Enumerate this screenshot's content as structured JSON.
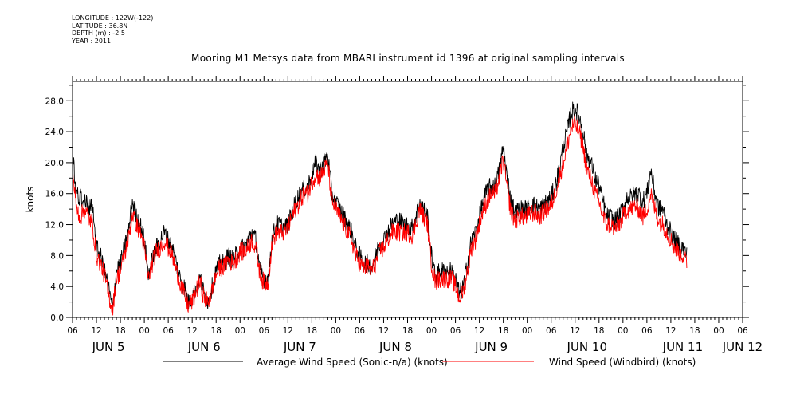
{
  "header": {
    "longitude": "LONGITUDE : 122W(-122)",
    "latitude": "LATITUDE : 36.8N",
    "depth": "DEPTH (m) : -2.5",
    "year": "YEAR : 2011"
  },
  "chart_data": {
    "type": "line",
    "title": "Mooring M1 Metsys data from MBARI instrument id 1396 at original sampling intervals",
    "ylabel": "knots",
    "xlabel": "",
    "ylim": [
      0,
      30.5
    ],
    "xlim_hours": [
      0,
      168
    ],
    "yticks": [
      "0.0",
      "4.0",
      "8.0",
      "12.0",
      "16.0",
      "20.0",
      "24.0",
      "28.0"
    ],
    "ytick_values": [
      0,
      4,
      8,
      12,
      16,
      20,
      24,
      28
    ],
    "hour_labels": [
      "06",
      "12",
      "18",
      "00",
      "06",
      "12",
      "18",
      "00",
      "06",
      "12",
      "18",
      "00",
      "06",
      "12",
      "18",
      "00",
      "06",
      "12",
      "18",
      "00",
      "06",
      "12",
      "18",
      "00",
      "06",
      "12",
      "18",
      "00",
      "06"
    ],
    "date_labels": [
      {
        "text": "JUN  5",
        "hour": 9
      },
      {
        "text": "JUN  6",
        "hour": 33
      },
      {
        "text": "JUN  7",
        "hour": 57
      },
      {
        "text": "JUN  8",
        "hour": 81
      },
      {
        "text": "JUN  9",
        "hour": 105
      },
      {
        "text": "JUN 10",
        "hour": 129
      },
      {
        "text": "JUN 11",
        "hour": 153
      },
      {
        "text": "JUN 12",
        "hour": 168
      }
    ],
    "grid": false,
    "legend": "bottom",
    "series": [
      {
        "name": "Average Wind Speed (Sonic-n/a) (knots)",
        "color": "#000000",
        "keypoints": [
          [
            0,
            21
          ],
          [
            1,
            16
          ],
          [
            2,
            15.5
          ],
          [
            3,
            15
          ],
          [
            4,
            14.5
          ],
          [
            5,
            14
          ],
          [
            6,
            9
          ],
          [
            7,
            8
          ],
          [
            8,
            6
          ],
          [
            9,
            4
          ],
          [
            10,
            1
          ],
          [
            11,
            6
          ],
          [
            12,
            7
          ],
          [
            13,
            9
          ],
          [
            14,
            11
          ],
          [
            15,
            15
          ],
          [
            16,
            13
          ],
          [
            17,
            12
          ],
          [
            18,
            10
          ],
          [
            19,
            5.5
          ],
          [
            20,
            7.5
          ],
          [
            21,
            9
          ],
          [
            22,
            10
          ],
          [
            23,
            11
          ],
          [
            24,
            10
          ],
          [
            25,
            9
          ],
          [
            26,
            7
          ],
          [
            27,
            5
          ],
          [
            28,
            4
          ],
          [
            29,
            2
          ],
          [
            30,
            2.5
          ],
          [
            31,
            4
          ],
          [
            32,
            5
          ],
          [
            33,
            3
          ],
          [
            34,
            2
          ],
          [
            35,
            4
          ],
          [
            36,
            6
          ],
          [
            37,
            7
          ],
          [
            38,
            7
          ],
          [
            39,
            8
          ],
          [
            40,
            7.5
          ],
          [
            41,
            8
          ],
          [
            42,
            9
          ],
          [
            43,
            9
          ],
          [
            44,
            10
          ],
          [
            45,
            11
          ],
          [
            46,
            10
          ],
          [
            47,
            6
          ],
          [
            48,
            5
          ],
          [
            49,
            5
          ],
          [
            50,
            10
          ],
          [
            51,
            12
          ],
          [
            52,
            12
          ],
          [
            53,
            11.5
          ],
          [
            54,
            12
          ],
          [
            55,
            13.5
          ],
          [
            56,
            15
          ],
          [
            57,
            16
          ],
          [
            58,
            16.5
          ],
          [
            59,
            17
          ],
          [
            60,
            18.5
          ],
          [
            61,
            20
          ],
          [
            62,
            19
          ],
          [
            63,
            20
          ],
          [
            64,
            21
          ],
          [
            65,
            16
          ],
          [
            66,
            15
          ],
          [
            67,
            14
          ],
          [
            68,
            13
          ],
          [
            69,
            12
          ],
          [
            70,
            11
          ],
          [
            71,
            9
          ],
          [
            72,
            8
          ],
          [
            73,
            7
          ],
          [
            74,
            7
          ],
          [
            75,
            6.5
          ],
          [
            76,
            8
          ],
          [
            77,
            9.5
          ],
          [
            78,
            10
          ],
          [
            79,
            11
          ],
          [
            80,
            12
          ],
          [
            81,
            12.5
          ],
          [
            82,
            12.5
          ],
          [
            83,
            12
          ],
          [
            84,
            12
          ],
          [
            85,
            11.5
          ],
          [
            86,
            13
          ],
          [
            87,
            15
          ],
          [
            88,
            14
          ],
          [
            89,
            13
          ],
          [
            90,
            8
          ],
          [
            91,
            5
          ],
          [
            92,
            6
          ],
          [
            93,
            6
          ],
          [
            94,
            6
          ],
          [
            95,
            6
          ],
          [
            96,
            5
          ],
          [
            97,
            3
          ],
          [
            98,
            4
          ],
          [
            99,
            7
          ],
          [
            100,
            10
          ],
          [
            101,
            11
          ],
          [
            102,
            13
          ],
          [
            103,
            15
          ],
          [
            104,
            16.5
          ],
          [
            105,
            17
          ],
          [
            106,
            17
          ],
          [
            107,
            19
          ],
          [
            108,
            22
          ],
          [
            109,
            18
          ],
          [
            110,
            15
          ],
          [
            111,
            13.5
          ],
          [
            112,
            14
          ],
          [
            113,
            14
          ],
          [
            114,
            14
          ],
          [
            115,
            14.5
          ],
          [
            116,
            14.5
          ],
          [
            117,
            14
          ],
          [
            118,
            14.5
          ],
          [
            119,
            15
          ],
          [
            120,
            15.5
          ],
          [
            121,
            17
          ],
          [
            122,
            19
          ],
          [
            123,
            22
          ],
          [
            124,
            24
          ],
          [
            125,
            26.5
          ],
          [
            126,
            27
          ],
          [
            127,
            26
          ],
          [
            128,
            24
          ],
          [
            129,
            21
          ],
          [
            130,
            20
          ],
          [
            131,
            18
          ],
          [
            132,
            17
          ],
          [
            133,
            15
          ],
          [
            134,
            13
          ],
          [
            135,
            13
          ],
          [
            136,
            12.5
          ],
          [
            137,
            13
          ],
          [
            138,
            14
          ],
          [
            139,
            15.5
          ],
          [
            140,
            15.5
          ],
          [
            141,
            16
          ],
          [
            142,
            16
          ],
          [
            143,
            15
          ],
          [
            144,
            16
          ],
          [
            145,
            19
          ],
          [
            146,
            16
          ],
          [
            147,
            14
          ],
          [
            148,
            14
          ],
          [
            149,
            12
          ],
          [
            150,
            11
          ],
          [
            151,
            10
          ],
          [
            152,
            9.5
          ],
          [
            153,
            9
          ],
          [
            154,
            8
          ]
        ]
      },
      {
        "name": "Wind Speed (Windbird) (knots)",
        "color": "#ff0000",
        "keypoints": [
          [
            0,
            19
          ],
          [
            1,
            14
          ],
          [
            2,
            13
          ],
          [
            3,
            14
          ],
          [
            4,
            13
          ],
          [
            5,
            12
          ],
          [
            6,
            8
          ],
          [
            7,
            7
          ],
          [
            8,
            5.5
          ],
          [
            9,
            3
          ],
          [
            10,
            1
          ],
          [
            11,
            5
          ],
          [
            12,
            6
          ],
          [
            13,
            8
          ],
          [
            14,
            10
          ],
          [
            15,
            13.5
          ],
          [
            16,
            12
          ],
          [
            17,
            11
          ],
          [
            18,
            9
          ],
          [
            19,
            5
          ],
          [
            20,
            7
          ],
          [
            21,
            8.5
          ],
          [
            22,
            9
          ],
          [
            23,
            10
          ],
          [
            24,
            9
          ],
          [
            25,
            8
          ],
          [
            26,
            6
          ],
          [
            27,
            4.5
          ],
          [
            28,
            3
          ],
          [
            29,
            1.5
          ],
          [
            30,
            2
          ],
          [
            31,
            3.5
          ],
          [
            32,
            4.5
          ],
          [
            33,
            2.5
          ],
          [
            34,
            2
          ],
          [
            35,
            3.5
          ],
          [
            36,
            5.5
          ],
          [
            37,
            6.5
          ],
          [
            38,
            6.5
          ],
          [
            39,
            7.5
          ],
          [
            40,
            7
          ],
          [
            41,
            7.5
          ],
          [
            42,
            8.5
          ],
          [
            43,
            8.5
          ],
          [
            44,
            9
          ],
          [
            45,
            10
          ],
          [
            46,
            9
          ],
          [
            47,
            5.5
          ],
          [
            48,
            4.5
          ],
          [
            49,
            4.5
          ],
          [
            50,
            9.5
          ],
          [
            51,
            11
          ],
          [
            52,
            11
          ],
          [
            53,
            11
          ],
          [
            54,
            11.5
          ],
          [
            55,
            13
          ],
          [
            56,
            14
          ],
          [
            57,
            15
          ],
          [
            58,
            16
          ],
          [
            59,
            16
          ],
          [
            60,
            17.5
          ],
          [
            61,
            18.5
          ],
          [
            62,
            18
          ],
          [
            63,
            19
          ],
          [
            64,
            20
          ],
          [
            65,
            15
          ],
          [
            66,
            14
          ],
          [
            67,
            13
          ],
          [
            68,
            12
          ],
          [
            69,
            11
          ],
          [
            70,
            10
          ],
          [
            71,
            8
          ],
          [
            72,
            7
          ],
          [
            73,
            6.5
          ],
          [
            74,
            6.5
          ],
          [
            75,
            6
          ],
          [
            76,
            7
          ],
          [
            77,
            8.5
          ],
          [
            78,
            9
          ],
          [
            79,
            10
          ],
          [
            80,
            11
          ],
          [
            81,
            11
          ],
          [
            82,
            11
          ],
          [
            83,
            11
          ],
          [
            84,
            11
          ],
          [
            85,
            10.5
          ],
          [
            86,
            12
          ],
          [
            87,
            14
          ],
          [
            88,
            13
          ],
          [
            89,
            12
          ],
          [
            90,
            7
          ],
          [
            91,
            4.5
          ],
          [
            92,
            5
          ],
          [
            93,
            5
          ],
          [
            94,
            5
          ],
          [
            95,
            5
          ],
          [
            96,
            4
          ],
          [
            97,
            2.5
          ],
          [
            98,
            3.5
          ],
          [
            99,
            6
          ],
          [
            100,
            9
          ],
          [
            101,
            10
          ],
          [
            102,
            12
          ],
          [
            103,
            14
          ],
          [
            104,
            15
          ],
          [
            105,
            16
          ],
          [
            106,
            16
          ],
          [
            107,
            18
          ],
          [
            108,
            20.5
          ],
          [
            109,
            16.5
          ],
          [
            110,
            13.5
          ],
          [
            111,
            12.5
          ],
          [
            112,
            13
          ],
          [
            113,
            13
          ],
          [
            114,
            13
          ],
          [
            115,
            13.5
          ],
          [
            116,
            13.5
          ],
          [
            117,
            13
          ],
          [
            118,
            13.5
          ],
          [
            119,
            14
          ],
          [
            120,
            14.5
          ],
          [
            121,
            16
          ],
          [
            122,
            18
          ],
          [
            123,
            20
          ],
          [
            124,
            22
          ],
          [
            125,
            24.5
          ],
          [
            126,
            25
          ],
          [
            127,
            24
          ],
          [
            128,
            22
          ],
          [
            129,
            19
          ],
          [
            130,
            18
          ],
          [
            131,
            16
          ],
          [
            132,
            15
          ],
          [
            133,
            13
          ],
          [
            134,
            12
          ],
          [
            135,
            12
          ],
          [
            136,
            11.5
          ],
          [
            137,
            12
          ],
          [
            138,
            13
          ],
          [
            139,
            14
          ],
          [
            140,
            14
          ],
          [
            141,
            14.5
          ],
          [
            142,
            14
          ],
          [
            143,
            13
          ],
          [
            144,
            14
          ],
          [
            145,
            16
          ],
          [
            146,
            14
          ],
          [
            147,
            12.5
          ],
          [
            148,
            12
          ],
          [
            149,
            11
          ],
          [
            150,
            10
          ],
          [
            151,
            9
          ],
          [
            152,
            8.5
          ],
          [
            153,
            8
          ],
          [
            154,
            7
          ]
        ]
      }
    ]
  }
}
